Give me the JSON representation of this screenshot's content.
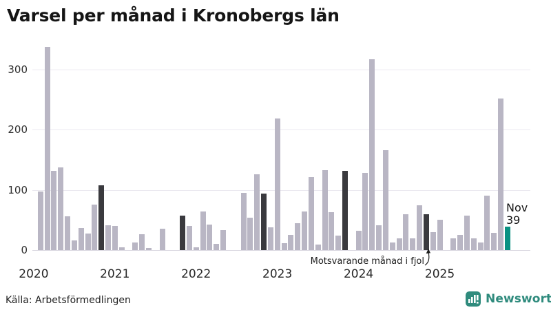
{
  "title": "Varsel per månad i Kronobergs län",
  "annotation": {
    "text": "Motsvarande månad i fjol"
  },
  "current_label": {
    "line1": "Nov",
    "line2": "39"
  },
  "source": {
    "text": "Källa: Arbetsförmedlingen"
  },
  "logo": {
    "text": "Newsworthy"
  },
  "colors": {
    "bar_light": "#b9b6c4",
    "bar_dark": "#3a3a3e",
    "bar_current": "#0a9182",
    "grid": "#eae8f0",
    "baseline": "#d9d7e0",
    "logo_teal": "#2f8b7d"
  },
  "chart_data": {
    "type": "bar",
    "title": "Varsel per månad i Kronobergs län",
    "start_month": "2020-01",
    "end_month": "2025-11",
    "y_ticks": [
      0,
      100,
      200,
      300
    ],
    "ylim": [
      0,
      340
    ],
    "grid": true,
    "x_year_labels": [
      "2020",
      "2021",
      "2022",
      "2023",
      "2024",
      "2025"
    ],
    "series": [
      {
        "name": "Varsel per månad",
        "values": [
          0,
          97,
          338,
          132,
          137,
          56,
          16,
          37,
          27,
          76,
          108,
          41,
          40,
          5,
          0,
          13,
          26,
          4,
          0,
          35,
          0,
          0,
          57,
          40,
          5,
          64,
          42,
          10,
          33,
          0,
          0,
          95,
          54,
          126,
          94,
          38,
          219,
          12,
          25,
          45,
          64,
          121,
          9,
          133,
          63,
          24,
          132,
          0,
          32,
          128,
          317,
          41,
          166,
          13,
          19,
          60,
          19,
          75,
          60,
          30,
          50,
          0,
          20,
          25,
          57,
          20,
          13,
          91,
          29,
          252,
          39
        ]
      }
    ],
    "dark_indices": [
      10,
      22,
      34,
      46,
      58
    ],
    "dark_meaning": "Motsvarande månad i fjol (november föregående år)",
    "current_index": 70,
    "current_value": 39,
    "current_month": "Nov",
    "legend": "none"
  }
}
